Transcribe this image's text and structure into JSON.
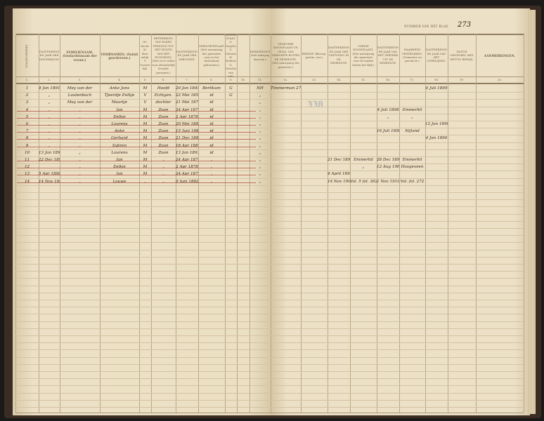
{
  "sheet": {
    "blad_label": "NUMMER VAN HET BLAD",
    "blad_number": "273",
    "pencil_note": "338"
  },
  "columns": [
    {
      "num": "1.",
      "label": "VOLGNUMMERS."
    },
    {
      "num": "2.",
      "label": "DAGTEEKENING EN JAAR DER INSCHRIJVING."
    },
    {
      "num": "3.",
      "label": "FAMILIENAAM. (Geslachtsnaam der vrouw.)"
    },
    {
      "num": "4.",
      "label": "VOORNAMEN. (Voluit geschreven.)"
    },
    {
      "num": "5.",
      "label": "Ge-slacht. M. Man-nelijk. V. Vrouwe-lijk."
    },
    {
      "num": "6.",
      "label": "BETREKKING VAN ELKEN PERSOON TOT HET HOOFD VAN HET HUISGEZIN. (Niet in te vullen voor afzonderlijk levende personen.)"
    },
    {
      "num": "7.",
      "label": "DAGTEEKENING EN JAAR DER GEBOORTE."
    },
    {
      "num": "8.",
      "label": "GEBOORTEPLAATS. (Met aanwijzing der gemeente voor in het buitenland geborenen.)"
    },
    {
      "num": "9.",
      "label": "BURGERLIJKE STAAT. O. Ongehuwd. G. Gehuwd. W. Weduwnaar. G. Gescheiden van echt."
    },
    {
      "num": "10.",
      "label": ""
    },
    {
      "num": "11.",
      "label": "KERKGENOOTSCHAP. (Met inbegrip daarvan.)"
    },
    {
      "num": "12.",
      "label": "VROEGERE WOONPLAATS IN GEVAL VAN GEBOORTE BUITEN DE GEMEENTE. (Met aanwijzing der gemeente.)"
    },
    {
      "num": "13.",
      "label": "BEROEP. (Beroep, positie, enz.)"
    },
    {
      "num": "14.",
      "label": "DAGTEEKENING EN JAAR DER VESTIGING IN DE GEMEENTE."
    },
    {
      "num": "15.",
      "label": "VORIGE WOONPLAATS. (Met aanwijzing der gemeente voor de landen buiten het Rijk.)"
    },
    {
      "num": "16.",
      "label": "DAGTEEKENING EN JAAR VAN HET VERTREK UIT DE GEMEENTE."
    },
    {
      "num": "17.",
      "label": "WAARHEEN VERTROKKEN. (Gemeente en provincie.)"
    },
    {
      "num": "18.",
      "label": "DAGTEEKENING EN JAAR VAN HET OVERLIJDEN."
    },
    {
      "num": "19.",
      "label": "DATUM ORIGINEEL MET WETTIG BEWIJS."
    },
    {
      "num": "20.",
      "label": "AANMERKINGEN."
    }
  ],
  "rows": [
    {
      "struck": false,
      "cells": [
        "1",
        "4 Jan 1891",
        "Mey van der",
        "Anke Jans",
        "M",
        "Hoofd",
        "20 Jan 1845",
        "Berlikum",
        "G",
        "",
        "NH",
        "Timmerman 277",
        "",
        "",
        "",
        "",
        "",
        "4 Juli 1899",
        "",
        ""
      ]
    },
    {
      "struck": false,
      "cells": [
        "2",
        "„",
        "Lautenbach",
        "Tjeerdje Eelkje",
        "V",
        "Echtgen.",
        "22 Mei 1850",
        "id",
        "G",
        "",
        "„",
        "",
        "",
        "",
        "",
        "",
        "",
        "",
        "",
        ""
      ]
    },
    {
      "struck": false,
      "cells": [
        "3",
        "„",
        "Mey van der",
        "Maartje",
        "V",
        "dochter",
        "21 Mei 1873",
        "id",
        "",
        "",
        "„",
        "",
        "",
        "",
        "",
        "",
        "",
        "",
        "",
        ""
      ]
    },
    {
      "struck": true,
      "cells": [
        "4",
        "„",
        "„",
        "Jan",
        "M",
        "Zoon",
        "24 Apr 1876",
        "id",
        "",
        "",
        "„",
        "",
        "",
        "",
        "",
        "4 Juli 1898",
        "Emmerhil",
        "",
        "",
        ""
      ]
    },
    {
      "struck": true,
      "cells": [
        "5",
        "„",
        "„",
        "Eelkje",
        "M",
        "Zoon",
        "2 Apr 1878",
        "id",
        "",
        "",
        "„",
        "",
        "",
        "",
        "",
        "„",
        "„",
        "",
        "",
        ""
      ]
    },
    {
      "struck": true,
      "cells": [
        "6",
        "„",
        "„",
        "Lourens",
        "M",
        "Zoon",
        "20 Mei 1880",
        "id",
        "",
        "",
        "„",
        "",
        "",
        "",
        "",
        "",
        "",
        "12 Jan 1890",
        "",
        ""
      ]
    },
    {
      "struck": true,
      "cells": [
        "7",
        "„",
        "„",
        "Anke",
        "M",
        "Zoon",
        "15 Juni 1882",
        "id",
        "",
        "",
        "„",
        "",
        "",
        "",
        "",
        "16 Juli 1898",
        "Nijland",
        "",
        "",
        ""
      ]
    },
    {
      "struck": true,
      "cells": [
        "8",
        "„",
        "„",
        "Gerhard",
        "M",
        "Zoon",
        "21 Dec 1884",
        "id",
        "",
        "",
        "„",
        "",
        "",
        "",
        "",
        "",
        "",
        "4 Jan 1890",
        "",
        ""
      ]
    },
    {
      "struck": true,
      "cells": [
        "9",
        "„",
        "„",
        "Sybren",
        "M",
        "Zoon",
        "18 Apr 1887",
        "id",
        "",
        "",
        "„",
        "",
        "",
        "",
        "",
        "",
        "",
        "",
        "",
        ""
      ]
    },
    {
      "struck": false,
      "cells": [
        "10",
        "13 Jan 1891",
        "„",
        "Lourens",
        "M",
        "Zoon",
        "13 Jan 1891",
        "id",
        "",
        "",
        "„",
        "",
        "",
        "",
        "",
        "",
        "",
        "",
        "",
        ""
      ]
    },
    {
      "struck": true,
      "cells": [
        "11",
        "22 Dec 1898",
        "„",
        "Jan",
        "M",
        "„",
        "24 Apr 1876",
        "„",
        "",
        "",
        "„",
        "",
        "",
        "21 Dec 1898",
        "Emmerhil",
        "28 Dec 1898",
        "Emmerhil",
        "",
        "",
        ""
      ]
    },
    {
      "struck": true,
      "cells": [
        "12",
        "",
        "„",
        "Eelkje",
        "M",
        "„",
        "2 Apr 1878",
        "„",
        "",
        "",
        "„",
        "",
        "",
        "",
        "„",
        "12 Aug 1905",
        "Hoogeveen",
        "",
        "",
        ""
      ]
    },
    {
      "struck": true,
      "cells": [
        "13",
        "5 Apr 1898",
        "„",
        "Jan",
        "M",
        "„",
        "24 Apr 1876",
        "„",
        "",
        "",
        "„",
        "",
        "",
        "4 April 1898",
        "",
        "",
        "",
        "",
        "",
        ""
      ]
    },
    {
      "struck": true,
      "cells": [
        "14",
        "14 Nov 1909",
        "„",
        "Louwe",
        "„",
        "„",
        "9 Juni 1882",
        "„",
        "",
        "",
        "„",
        "",
        "",
        "14 Nov 1909",
        "Vol. 5 fol. 302",
        "1 Nov 1910",
        "Vol. fol. 272",
        "",
        "",
        ""
      ]
    }
  ]
}
